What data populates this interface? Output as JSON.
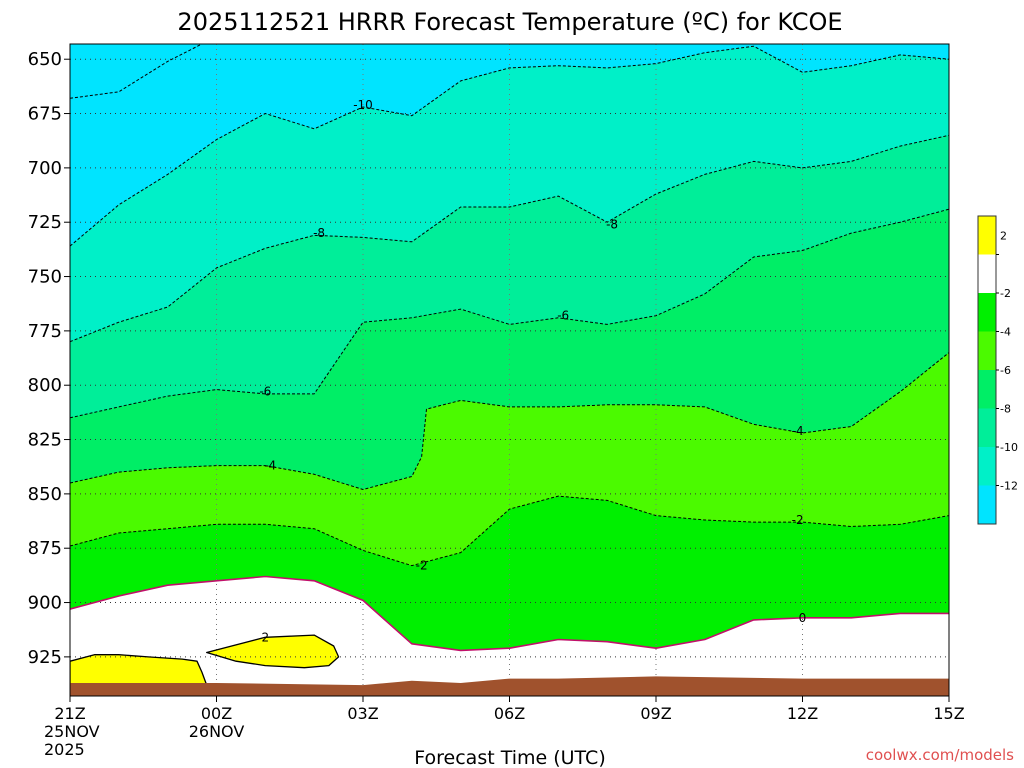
{
  "chart_data": {
    "type": "contour",
    "title": "2025112521 HRRR Forecast Temperature (ºC) for KCOE",
    "xlabel": "Forecast Time (UTC)",
    "ylabel": "",
    "credit": "coolwx.com/models",
    "x_ticks": [
      {
        "hour": 0,
        "lines": [
          "21Z",
          "25NOV",
          "2025"
        ]
      },
      {
        "hour": 3,
        "lines": [
          "00Z",
          "26NOV"
        ]
      },
      {
        "hour": 6,
        "lines": [
          "03Z"
        ]
      },
      {
        "hour": 9,
        "lines": [
          "06Z"
        ]
      },
      {
        "hour": 12,
        "lines": [
          "09Z"
        ]
      },
      {
        "hour": 15,
        "lines": [
          "12Z"
        ]
      },
      {
        "hour": 18,
        "lines": [
          "15Z"
        ]
      }
    ],
    "y_ticks": [
      650,
      675,
      700,
      725,
      750,
      775,
      800,
      825,
      850,
      875,
      900,
      925
    ],
    "xlim_hours": [
      0,
      18
    ],
    "ylim_hPa": [
      643,
      943
    ],
    "y_axis_inverted": true,
    "grid": true,
    "legend": "colorbar-right",
    "colorbar": {
      "ticks": [
        "2",
        "-2",
        "-4",
        "-6",
        "-8",
        "-10",
        "-12"
      ],
      "bins": [
        {
          "color": "#ffff00"
        },
        {
          "color": "#ffffff"
        },
        {
          "color": "#00f000"
        },
        {
          "color": "#4bfa00"
        },
        {
          "color": "#00ee66"
        },
        {
          "color": "#00ee99"
        },
        {
          "color": "#00f0c8"
        },
        {
          "color": "#00e4ff"
        }
      ]
    },
    "contours": [
      {
        "level": -10,
        "label": "-10",
        "label_points": [
          [
            6.0,
            671
          ]
        ],
        "points": [
          [
            0,
            668
          ],
          [
            1,
            665
          ],
          [
            2,
            651
          ],
          [
            2.7,
            643
          ]
        ]
      },
      {
        "level": -10,
        "label": "",
        "label_points": [],
        "points": [
          [
            0,
            736
          ],
          [
            1,
            717
          ],
          [
            2,
            703
          ],
          [
            3,
            687
          ],
          [
            4,
            675
          ],
          [
            5,
            682
          ],
          [
            6,
            672
          ],
          [
            7,
            676
          ],
          [
            8,
            660
          ],
          [
            9,
            654
          ],
          [
            10,
            653
          ],
          [
            11,
            654
          ],
          [
            12,
            652
          ],
          [
            13,
            647
          ],
          [
            14,
            644
          ],
          [
            15,
            656
          ],
          [
            16,
            653
          ],
          [
            17,
            648
          ],
          [
            18,
            650
          ]
        ]
      },
      {
        "level": -8,
        "label": "-8",
        "label_points": [
          [
            5.1,
            730
          ],
          [
            11.1,
            726
          ]
        ],
        "points": [
          [
            0,
            780
          ],
          [
            1,
            771
          ],
          [
            2,
            764
          ],
          [
            3,
            746
          ],
          [
            4,
            737
          ],
          [
            5,
            731
          ],
          [
            6,
            732
          ],
          [
            7,
            734
          ],
          [
            8,
            718
          ],
          [
            9,
            718
          ],
          [
            10,
            713
          ],
          [
            11,
            725
          ],
          [
            12,
            712
          ],
          [
            13,
            703
          ],
          [
            14,
            697
          ],
          [
            15,
            700
          ],
          [
            16,
            697
          ],
          [
            17,
            690
          ],
          [
            18,
            685
          ]
        ]
      },
      {
        "level": -6,
        "label": "-6",
        "label_points": [
          [
            4.0,
            803
          ],
          [
            10.1,
            768
          ]
        ],
        "points": [
          [
            0,
            815
          ],
          [
            1,
            810
          ],
          [
            2,
            805
          ],
          [
            3,
            802
          ],
          [
            4,
            804
          ],
          [
            5,
            804
          ],
          [
            6,
            771
          ],
          [
            7,
            769
          ],
          [
            8,
            765
          ],
          [
            9,
            772
          ],
          [
            10,
            769
          ],
          [
            11,
            772
          ],
          [
            12,
            768
          ],
          [
            13,
            758
          ],
          [
            14,
            741
          ],
          [
            15,
            738
          ],
          [
            16,
            730
          ],
          [
            17,
            725
          ],
          [
            18,
            719
          ]
        ]
      },
      {
        "level": -4,
        "label": "-4",
        "label_points": [
          [
            4.1,
            837
          ],
          [
            14.9,
            821
          ]
        ],
        "points": [
          [
            0,
            845
          ],
          [
            1,
            840
          ],
          [
            2,
            838
          ],
          [
            3,
            837
          ],
          [
            4,
            837
          ],
          [
            5,
            841
          ],
          [
            6,
            848
          ],
          [
            7,
            842
          ],
          [
            7.2,
            833
          ],
          [
            7.3,
            811
          ],
          [
            8,
            807
          ],
          [
            9,
            810
          ],
          [
            10,
            810
          ],
          [
            11,
            809
          ],
          [
            12,
            809
          ],
          [
            13,
            810
          ],
          [
            14,
            818
          ],
          [
            15,
            822
          ],
          [
            16,
            819
          ],
          [
            17,
            803
          ],
          [
            18,
            785
          ]
        ]
      },
      {
        "level": -2,
        "label": "-2",
        "label_points": [
          [
            7.2,
            883
          ],
          [
            14.9,
            862
          ]
        ],
        "points": [
          [
            0,
            874
          ],
          [
            1,
            868
          ],
          [
            2,
            866
          ],
          [
            3,
            864
          ],
          [
            4,
            864
          ],
          [
            5,
            866
          ],
          [
            6,
            876
          ],
          [
            7,
            883
          ],
          [
            8,
            877
          ],
          [
            9,
            857
          ],
          [
            10,
            851
          ],
          [
            11,
            853
          ],
          [
            12,
            860
          ],
          [
            13,
            862
          ],
          [
            14,
            863
          ],
          [
            15,
            863
          ],
          [
            16,
            865
          ],
          [
            17,
            864
          ],
          [
            18,
            860
          ]
        ]
      },
      {
        "level": 0,
        "label": "0",
        "label_points": [
          [
            15.0,
            907
          ]
        ],
        "points": [
          [
            0,
            903
          ],
          [
            1,
            897
          ],
          [
            2,
            892
          ],
          [
            3,
            890
          ],
          [
            4,
            888
          ],
          [
            5,
            890
          ],
          [
            6,
            899
          ],
          [
            7,
            919
          ],
          [
            8,
            922
          ],
          [
            9,
            921
          ],
          [
            10,
            917
          ],
          [
            11,
            918
          ],
          [
            12,
            921
          ],
          [
            13,
            917
          ],
          [
            14,
            908
          ],
          [
            15,
            907
          ],
          [
            16,
            907
          ],
          [
            17,
            905
          ],
          [
            18,
            905
          ]
        ]
      },
      {
        "level": 2,
        "label": "2",
        "label_points": [
          [
            4.0,
            916
          ]
        ],
        "points": [
          [
            2.8,
            923
          ],
          [
            4.0,
            916
          ],
          [
            5.0,
            915
          ],
          [
            5.4,
            920
          ],
          [
            5.5,
            925
          ],
          [
            5.3,
            929
          ],
          [
            4.8,
            930
          ],
          [
            4.0,
            929
          ],
          [
            3.4,
            927
          ],
          [
            2.8,
            923
          ]
        ]
      },
      {
        "level": 2,
        "label": "",
        "label_points": [],
        "points": [
          [
            0,
            927
          ],
          [
            0.5,
            924
          ],
          [
            1,
            924
          ],
          [
            1.6,
            925
          ],
          [
            2.3,
            926
          ],
          [
            2.6,
            927
          ],
          [
            2.7,
            932
          ],
          [
            2.8,
            938
          ],
          [
            0,
            940
          ]
        ]
      }
    ],
    "ground": {
      "color": "#a0522d",
      "points": [
        [
          0,
          937
        ],
        [
          3,
          937
        ],
        [
          6,
          938
        ],
        [
          7,
          936
        ],
        [
          8,
          937
        ],
        [
          9,
          935
        ],
        [
          10,
          935
        ],
        [
          12,
          934
        ],
        [
          15,
          935
        ],
        [
          18,
          935
        ]
      ]
    }
  }
}
